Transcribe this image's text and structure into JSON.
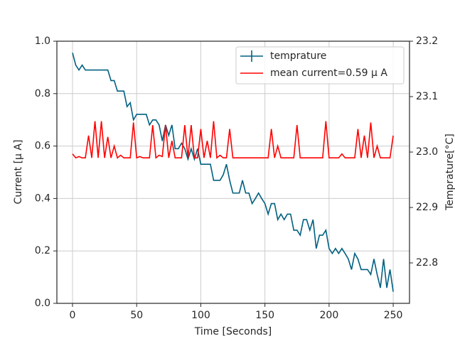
{
  "chart_data": {
    "type": "line",
    "x_label": "Time [Seconds]",
    "y_label": "Current [μ A]",
    "y2_label": "Temprature[°C]",
    "x": [
      0,
      2.5,
      5,
      7.5,
      10,
      12.5,
      15,
      17.5,
      20,
      22.5,
      25,
      27.5,
      30,
      32.5,
      35,
      37.5,
      40,
      42.5,
      45,
      47.5,
      50,
      52.5,
      55,
      57.5,
      60,
      62.5,
      65,
      67.5,
      70,
      72.5,
      75,
      77.5,
      80,
      82.5,
      85,
      87.5,
      90,
      92.5,
      95,
      97.5,
      100,
      102.5,
      105,
      107.5,
      110,
      112.5,
      115,
      117.5,
      120,
      122.5,
      125,
      127.5,
      130,
      132.5,
      135,
      137.5,
      140,
      142.5,
      145,
      147.5,
      150,
      152.5,
      155,
      157.5,
      160,
      162.5,
      165,
      167.5,
      170,
      172.5,
      175,
      177.5,
      180,
      182.5,
      185,
      187.5,
      190,
      192.5,
      195,
      197.5,
      200,
      202.5,
      205,
      207.5,
      210,
      212.5,
      215,
      217.5,
      220,
      222.5,
      225,
      227.5,
      230,
      232.5,
      235,
      237.5,
      240,
      242.5,
      245,
      247.5,
      250
    ],
    "series": [
      {
        "name": "temprature",
        "color": "#006080",
        "axis": "y2",
        "values": [
          23.179,
          23.157,
          23.148,
          23.157,
          23.148,
          23.148,
          23.148,
          23.148,
          23.148,
          23.148,
          23.148,
          23.148,
          23.129,
          23.129,
          23.11,
          23.11,
          23.11,
          23.082,
          23.089,
          23.058,
          23.068,
          23.068,
          23.068,
          23.068,
          23.049,
          23.058,
          23.058,
          23.049,
          23.02,
          23.049,
          23.03,
          23.049,
          23.006,
          23.006,
          23.016,
          23.006,
          22.987,
          23.006,
          22.987,
          23.006,
          22.978,
          22.978,
          22.978,
          22.978,
          22.949,
          22.949,
          22.949,
          22.959,
          22.978,
          22.949,
          22.926,
          22.926,
          22.926,
          22.949,
          22.926,
          22.926,
          22.907,
          22.916,
          22.926,
          22.916,
          22.907,
          22.888,
          22.907,
          22.907,
          22.878,
          22.888,
          22.878,
          22.888,
          22.888,
          22.859,
          22.859,
          22.85,
          22.878,
          22.878,
          22.859,
          22.878,
          22.826,
          22.85,
          22.85,
          22.859,
          22.826,
          22.817,
          22.826,
          22.817,
          22.826,
          22.817,
          22.807,
          22.788,
          22.817,
          22.807,
          22.788,
          22.788,
          22.788,
          22.779,
          22.807,
          22.779,
          22.755,
          22.807,
          22.755,
          22.788,
          22.748
        ]
      },
      {
        "name": "mean current=0.59 μ A",
        "color": "#ff0000",
        "values": [
          0.57,
          0.555,
          0.56,
          0.555,
          0.555,
          0.64,
          0.555,
          0.695,
          0.555,
          0.695,
          0.555,
          0.635,
          0.555,
          0.6,
          0.555,
          0.565,
          0.555,
          0.555,
          0.555,
          0.69,
          0.555,
          0.56,
          0.555,
          0.555,
          0.555,
          0.68,
          0.555,
          0.565,
          0.56,
          0.68,
          0.555,
          0.62,
          0.555,
          0.555,
          0.555,
          0.68,
          0.555,
          0.68,
          0.555,
          0.555,
          0.665,
          0.555,
          0.62,
          0.555,
          0.695,
          0.555,
          0.565,
          0.555,
          0.555,
          0.665,
          0.555,
          0.555,
          0.555,
          0.555,
          0.555,
          0.555,
          0.555,
          0.555,
          0.555,
          0.555,
          0.555,
          0.555,
          0.665,
          0.555,
          0.6,
          0.555,
          0.555,
          0.555,
          0.555,
          0.555,
          0.68,
          0.555,
          0.555,
          0.555,
          0.555,
          0.555,
          0.555,
          0.555,
          0.555,
          0.695,
          0.555,
          0.555,
          0.555,
          0.555,
          0.57,
          0.555,
          0.555,
          0.555,
          0.555,
          0.665,
          0.555,
          0.64,
          0.555,
          0.69,
          0.555,
          0.6,
          0.555,
          0.555,
          0.555,
          0.555,
          0.64
        ]
      }
    ],
    "xlim": [
      -12.2,
      262.7
    ],
    "xticks": [
      0,
      50,
      100,
      150,
      200,
      250
    ],
    "ylim": [
      0,
      1
    ],
    "yticks": [
      {
        "value": 0,
        "label": "0.0"
      },
      {
        "value": 0.2,
        "label": "0.2"
      },
      {
        "value": 0.4,
        "label": "0.4"
      },
      {
        "value": 0.6,
        "label": "0.6"
      },
      {
        "value": 0.8,
        "label": "0.8"
      },
      {
        "value": 1,
        "label": "1.0"
      }
    ],
    "y2lim": [
      22.727,
      23.2
    ],
    "y2ticks": [
      22.8,
      22.9,
      {
        "value": 23,
        "label": "23.0"
      },
      23.1,
      23.2
    ],
    "grid": true,
    "legend": "upper right"
  }
}
